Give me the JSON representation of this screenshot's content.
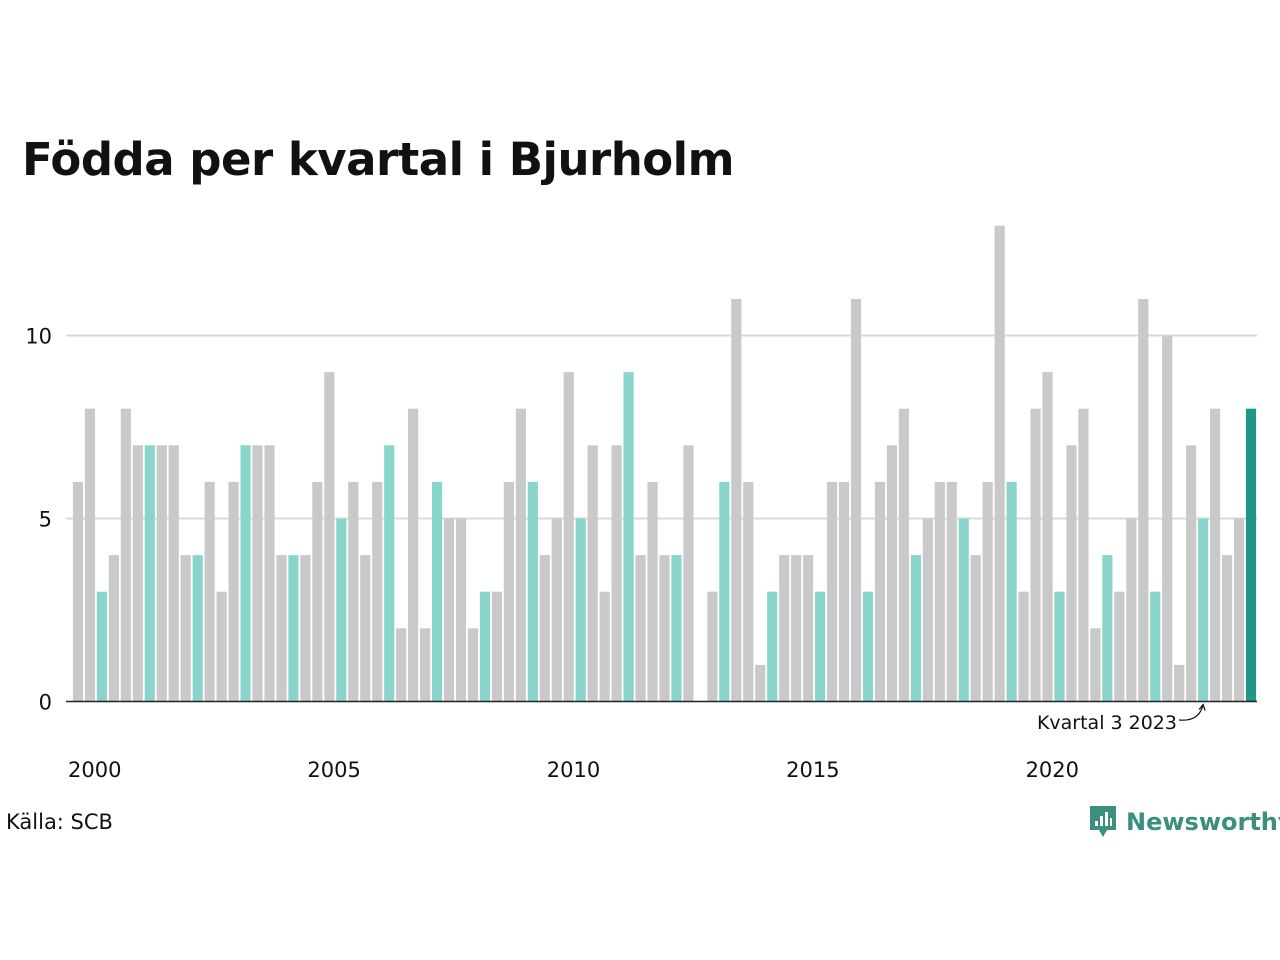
{
  "title": "Födda per kvartal i Bjurholm",
  "source": "Källa: SCB",
  "brand": "Newsworthy",
  "colors": {
    "bar": "#c9c9c9",
    "bar_q3": "#8ad5cb",
    "bar_latest": "#1f9787",
    "grid": "#d9d9d9",
    "axis": "#222222",
    "brand": "#3b8f7e"
  },
  "chart_data": {
    "type": "bar",
    "title": "Födda per kvartal i Bjurholm",
    "xlabel": "",
    "ylabel": "",
    "ylim": [
      0,
      13
    ],
    "yticks": [
      0,
      5,
      10
    ],
    "xticks": [
      "2000",
      "2005",
      "2010",
      "2015",
      "2020"
    ],
    "grid": true,
    "start_year": 2000,
    "values": [
      6,
      8,
      3,
      4,
      8,
      7,
      7,
      7,
      7,
      4,
      4,
      6,
      3,
      6,
      7,
      7,
      7,
      4,
      4,
      4,
      6,
      9,
      5,
      6,
      4,
      6,
      7,
      2,
      8,
      2,
      6,
      5,
      5,
      2,
      3,
      3,
      6,
      8,
      6,
      4,
      5,
      9,
      5,
      7,
      3,
      7,
      9,
      4,
      6,
      4,
      4,
      7,
      0,
      3,
      6,
      11,
      6,
      1,
      3,
      4,
      4,
      4,
      3,
      6,
      6,
      11,
      3,
      6,
      7,
      8,
      4,
      5,
      6,
      6,
      5,
      4,
      6,
      13,
      6,
      3,
      8,
      9,
      3,
      7,
      8,
      2,
      4,
      3,
      5,
      11,
      3,
      10,
      1,
      7,
      5,
      8,
      4,
      5,
      8
    ],
    "highlight_quarter": 3,
    "annotation": {
      "label": "Kvartal 3 2023",
      "index": 94
    }
  }
}
